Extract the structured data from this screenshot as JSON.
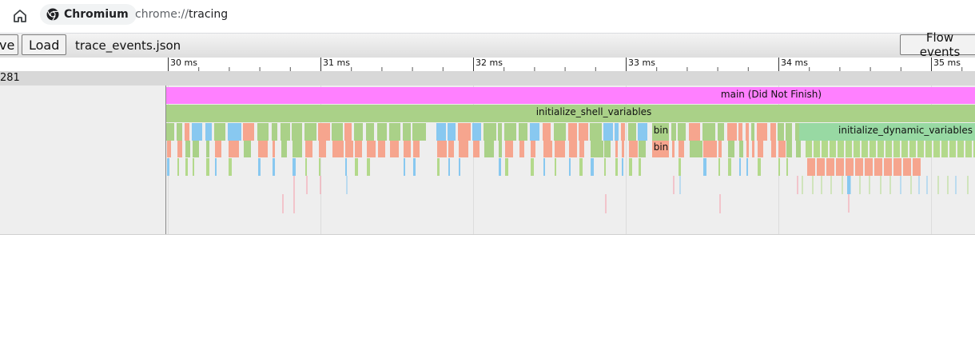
{
  "browser": {
    "app_name": "Chromium",
    "url_scheme": "chrome://",
    "url_path": "tracing"
  },
  "toolbar": {
    "save_label": "ve",
    "load_label": "Load",
    "filename": "trace_events.json",
    "flow_events_label": "Flow events"
  },
  "ruler": {
    "ticks": [
      "30 ms",
      "31 ms",
      "32 ms",
      "33 ms",
      "34 ms",
      "35 ms"
    ]
  },
  "process": {
    "label": "281"
  },
  "slices": {
    "main": "main (Did Not Finish)",
    "init_shell": "initialize_shell_variables",
    "bin_1": "bin",
    "bin_2": "bin",
    "init_dynamic": "initialize_dynamic_variables"
  },
  "colors": {
    "main": "#ff80ff",
    "init_shell": "#aad188",
    "init_dynamic": "#98d9a3",
    "salmon": "#f6a58e",
    "blue": "#88c8f0",
    "pink": "#f59aa8",
    "green": "#b3d98b"
  }
}
